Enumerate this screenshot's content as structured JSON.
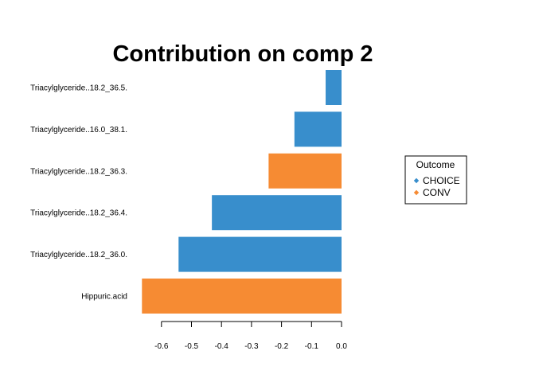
{
  "chart_data": {
    "type": "bar",
    "orientation": "horizontal",
    "title": "Contribution on comp 2",
    "xlabel": "",
    "ylabel": "",
    "xlim": [
      -0.65,
      0.0
    ],
    "xticks": [
      -0.6,
      -0.5,
      -0.4,
      -0.3,
      -0.2,
      -0.1,
      0.0
    ],
    "xtick_labels": [
      "-0.6",
      "-0.5",
      "-0.4",
      "-0.3",
      "-0.2",
      "-0.1",
      "0.0"
    ],
    "grid": false,
    "categories": [
      "Triacylglyceride..18.2_36.5.",
      "Triacylglyceride..16.0_38.1.",
      "Triacylglyceride..18.2_36.3.",
      "Triacylglyceride..18.2_36.4.",
      "Triacylglyceride..18.2_36.0.",
      "Hippuric.acid"
    ],
    "values": [
      -0.053,
      -0.157,
      -0.243,
      -0.432,
      -0.543,
      -0.665
    ],
    "groups": [
      "CHOICE",
      "CHOICE",
      "CONV",
      "CHOICE",
      "CHOICE",
      "CONV"
    ],
    "legend": {
      "title": "Outcome",
      "position": "right",
      "entries": [
        {
          "label": "CHOICE",
          "color": "#388ECC"
        },
        {
          "label": "CONV",
          "color": "#F68B33"
        }
      ]
    }
  }
}
